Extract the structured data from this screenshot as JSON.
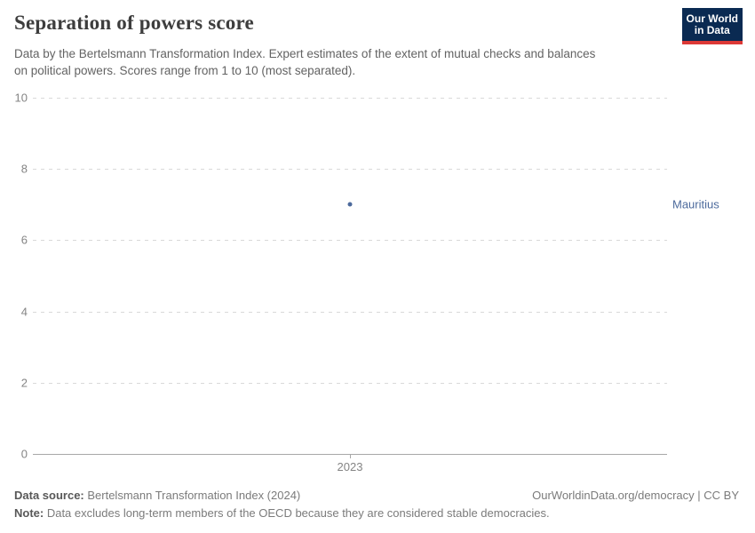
{
  "header": {
    "title": "Separation of powers score",
    "subtitle_line1": "Data by the Bertelsmann Transformation Index. Expert estimates of the extent of mutual checks and balances",
    "subtitle_line2": "on political powers. Scores range from 1 to 10 (most separated)."
  },
  "logo": {
    "line1": "Our World",
    "line2": "in Data",
    "bg_color": "#0a2a52",
    "stripe_color": "#dc3936"
  },
  "chart_data": {
    "type": "scatter",
    "title": "Separation of powers score",
    "x": [
      "2023"
    ],
    "xticks": [
      "2023"
    ],
    "series": [
      {
        "name": "Mauritius",
        "values": [
          7
        ],
        "color": "#4c6a9c"
      }
    ],
    "xlabel": "",
    "ylabel": "",
    "ylim": [
      0,
      10
    ],
    "yticks": [
      0,
      2,
      4,
      6,
      8,
      10
    ],
    "grid": "horizontal-dashed",
    "legend_position": "entity-label-right",
    "gridline_color": "#d9d9d9",
    "axis_color": "#a8a8a8",
    "tick_label_color": "#848484"
  },
  "footer": {
    "source_label": "Data source:",
    "source_text": " Bertelsmann Transformation Index (2024)",
    "license_text": "OurWorldinData.org/democracy | CC BY",
    "note_label": "Note:",
    "note_text": " Data excludes long-term members of the OECD because they are considered stable democracies."
  }
}
